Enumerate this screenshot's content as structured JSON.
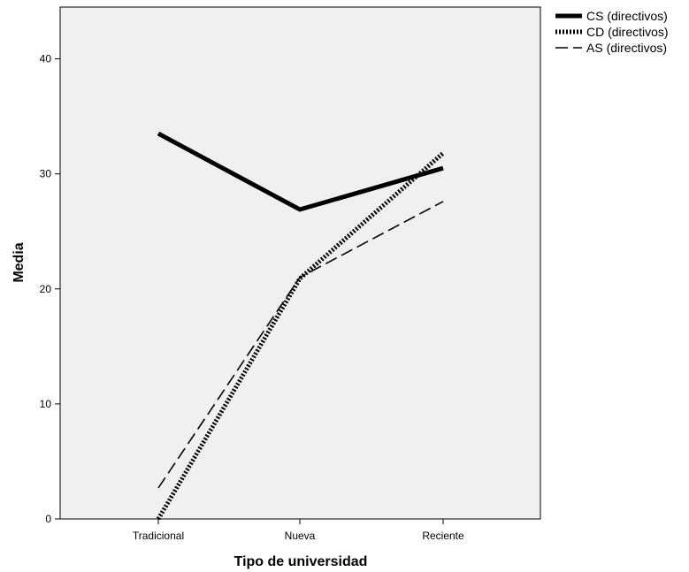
{
  "chart_data": {
    "type": "line",
    "title": "",
    "xlabel": "Tipo de universidad",
    "ylabel": "Media",
    "categories": [
      "Tradicional",
      "Nueva",
      "Reciente"
    ],
    "y_ticks": [
      0,
      10,
      20,
      30,
      40
    ],
    "ylim": [
      0,
      44.5
    ],
    "grid": false,
    "legend_position": "top-right, outside plot",
    "plot_background": "#f0f0f0",
    "series": [
      {
        "name": "CS (directivos)",
        "values": [
          33.5,
          26.9,
          30.5
        ],
        "line_style": "solid-thick",
        "color": "#000000"
      },
      {
        "name": "CD (directivos)",
        "values": [
          0.0,
          20.9,
          31.8
        ],
        "line_style": "dotted-thick",
        "color": "#000000"
      },
      {
        "name": "AS (directivos)",
        "values": [
          2.7,
          21.0,
          27.6
        ],
        "line_style": "dashed-thin",
        "color": "#000000"
      }
    ]
  }
}
